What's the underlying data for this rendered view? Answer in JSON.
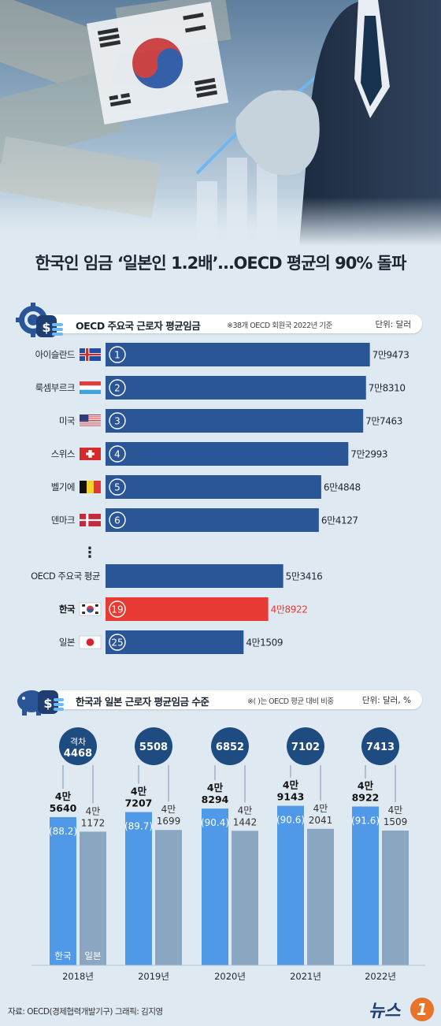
{
  "title": "한국인 임금 ‘일본인 1.2배’…OECD 평균의 90% 돌파",
  "section1": {
    "title": "OECD 주요국 근로자 평균임금",
    "note": "※38개 OECD 회원국 2022년 기준",
    "unit": "단위: 달러"
  },
  "section2": {
    "title": "한국과 일본 근로자 평균임금 수준",
    "note": "※( )는 OECD 평균 대비 비중",
    "unit": "단위: 달러, %"
  },
  "chart_data": [
    {
      "type": "bar",
      "orientation": "horizontal",
      "title": "OECD 주요국 근로자 평균임금",
      "unit": "단위: 달러",
      "categories": [
        "아이슬란드",
        "룩셈부르크",
        "미국",
        "스위스",
        "벨기에",
        "덴마크",
        "OECD 주요국 평균",
        "한국",
        "일본"
      ],
      "ranks": [
        "1",
        "2",
        "3",
        "4",
        "5",
        "6",
        "",
        "19",
        "25"
      ],
      "values": [
        79473,
        78310,
        77463,
        72993,
        64848,
        64127,
        53416,
        48922,
        41509
      ],
      "value_labels": [
        "7만9473",
        "7만8310",
        "7만7463",
        "7만2993",
        "6만4848",
        "6만4127",
        "5만3416",
        "4만8922",
        "4만1509"
      ],
      "flags": [
        "iceland",
        "luxembourg",
        "usa",
        "switzerland",
        "belgium",
        "denmark",
        "",
        "korea",
        "japan"
      ],
      "ellipsis": "⋮",
      "colors": {
        "bar": "#2a5597",
        "highlight": "#e83a35"
      }
    },
    {
      "type": "bar",
      "title": "한국과 일본 근로자 평균임금 수준",
      "unit": "단위: 달러, %",
      "categories": [
        "2018년",
        "2019년",
        "2020년",
        "2021년",
        "2022년"
      ],
      "series": [
        {
          "name": "한국",
          "values": [
            45640,
            47207,
            48294,
            49143,
            48922
          ],
          "labels": [
            [
              "4만",
              "5640"
            ],
            [
              "4만",
              "7207"
            ],
            [
              "4만",
              "8294"
            ],
            [
              "4만",
              "9143"
            ],
            [
              "4만",
              "8922"
            ]
          ],
          "share_labels": [
            "(88.2)",
            "(89.7)",
            "(90.4)",
            "(90.6)",
            "(91.6)"
          ],
          "color": "#4f99e8"
        },
        {
          "name": "일본",
          "values": [
            41172,
            41699,
            41442,
            42041,
            41509
          ],
          "labels": [
            [
              "4만",
              "1172"
            ],
            [
              "4만",
              "1699"
            ],
            [
              "4만",
              "1442"
            ],
            [
              "4만",
              "2041"
            ],
            [
              "4만",
              "1509"
            ]
          ],
          "color": "#8aa6c1"
        }
      ],
      "gap_prefix": "격차",
      "gap_labels": [
        "4468",
        "5508",
        "6852",
        "7102",
        "7413"
      ],
      "gap_color": "#1f4c80"
    }
  ],
  "footer": {
    "source": "자료: OECD(경제협력개발기구)  그래픽: 김지영",
    "logo_text": "뉴스",
    "logo_mark": "1"
  }
}
